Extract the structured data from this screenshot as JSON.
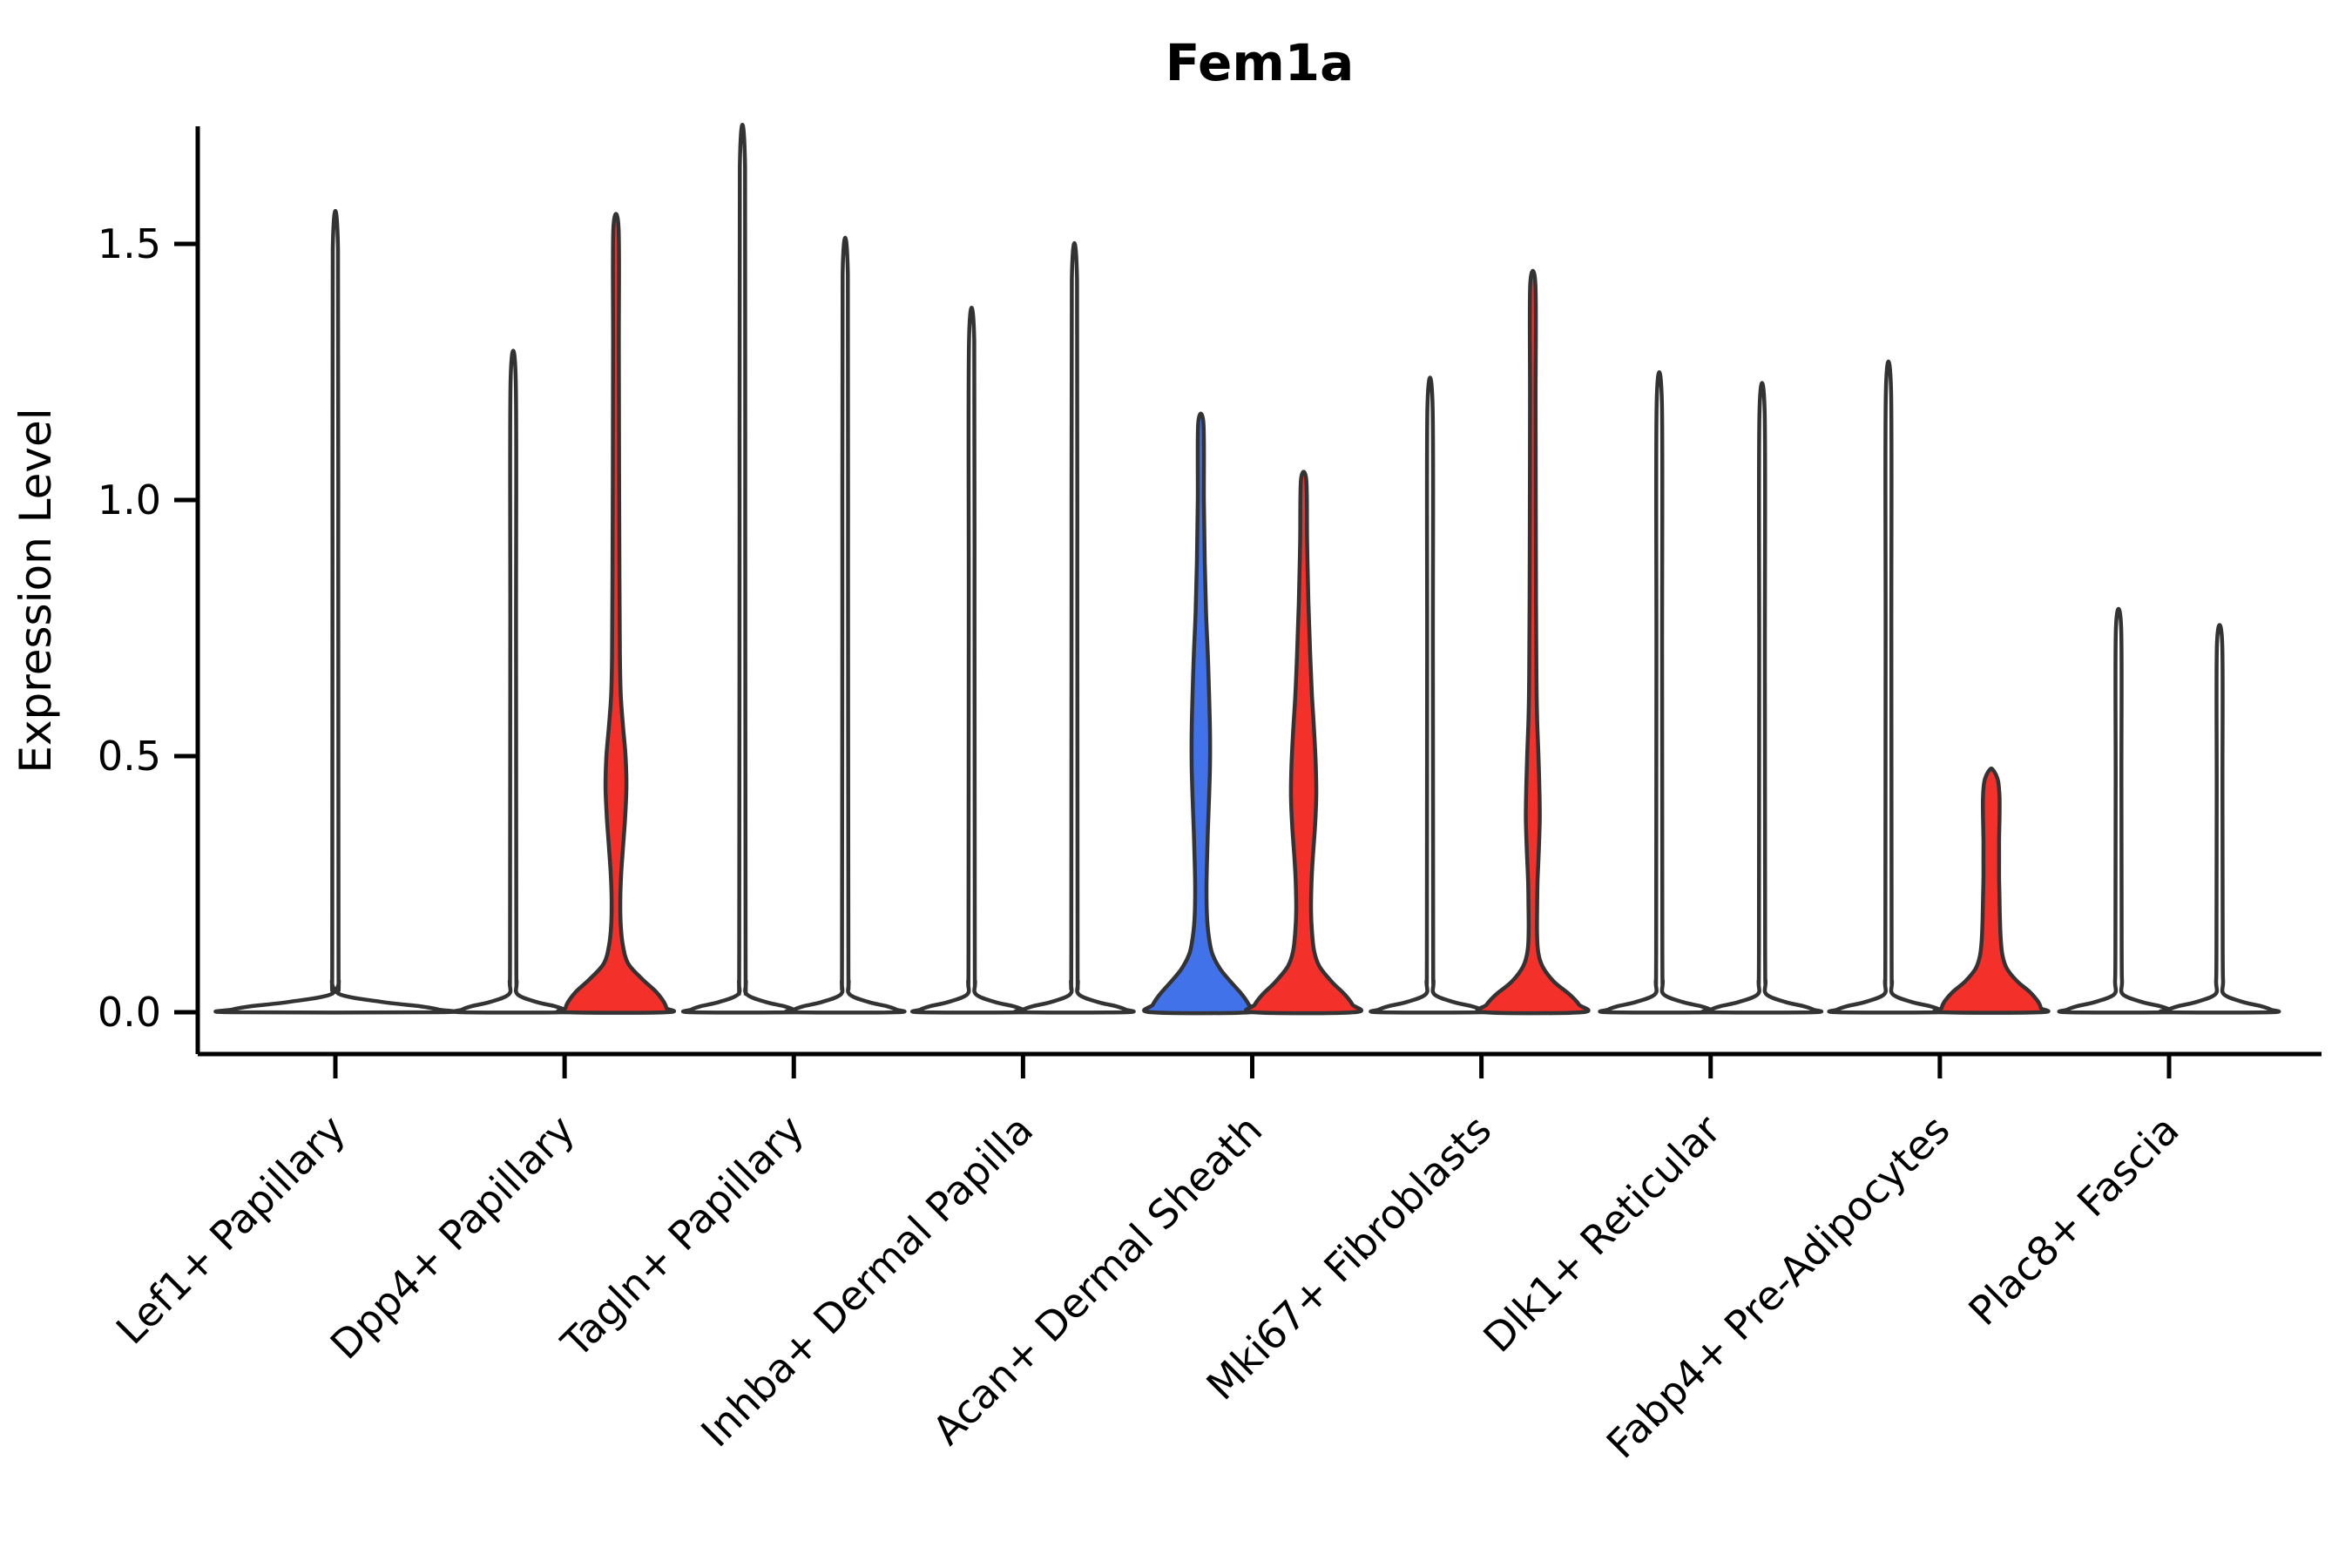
{
  "title": "Fem1a",
  "ylabel": "Expression Level",
  "chart_data": {
    "type": "violin",
    "title": "Fem1a",
    "xlabel": "",
    "ylabel": "Expression Level",
    "ylim": [
      0,
      1.73
    ],
    "yticks": [
      "0.0",
      "0.5",
      "1.0",
      "1.5"
    ],
    "ytick_values": [
      0.0,
      0.5,
      1.0,
      1.5
    ],
    "grid": "off",
    "legend": "none",
    "colors": {
      "red": "#F4302B",
      "blue": "#4272EA",
      "outline": "#333333",
      "axis": "#000000"
    },
    "categories": [
      "Lef1+ Papillary",
      "Dpp4+ Papillary",
      "Tagln+ Papillary",
      "Inhba+ Dermal Papilla",
      "Acan+ Dermal Sheath",
      "Mki67+ Fibroblasts",
      "Dlk1+ Reticular",
      "Fabp4+ Pre-Adipocytes",
      "Plac8+ Fascia"
    ],
    "category_max_expression": [
      {
        "category": "Lef1+ Papillary",
        "violins": [
          1.49
        ]
      },
      {
        "category": "Dpp4+ Papillary",
        "violins": [
          1.23,
          1.53
        ]
      },
      {
        "category": "Tagln+ Papillary",
        "violins": [
          1.65,
          1.44
        ]
      },
      {
        "category": "Inhba+ Dermal Papilla",
        "violins": [
          1.31,
          1.43
        ]
      },
      {
        "category": "Acan+ Dermal Sheath",
        "violins": [
          1.15,
          1.04
        ]
      },
      {
        "category": "Mki67+ Fibroblasts",
        "violins": [
          1.18,
          1.42
        ]
      },
      {
        "category": "Dlk1+ Reticular",
        "violins": [
          1.19,
          1.17
        ]
      },
      {
        "category": "Fabp4+ Pre-Adipocytes",
        "violins": [
          1.21,
          0.48
        ]
      },
      {
        "category": "Plac8+ Fascia",
        "violins": [
          0.75,
          0.72
        ]
      }
    ],
    "violins": [
      {
        "name": "lef1-papillary-single",
        "category_index": 0,
        "offset": 0,
        "fill": "none",
        "max": 1.49,
        "half_max": 119,
        "profile": "spike"
      },
      {
        "name": "dpp4-papillary-left",
        "category_index": 1,
        "offset": -59,
        "fill": "none",
        "max": 1.23,
        "half_max": 59,
        "profile": "spike"
      },
      {
        "name": "dpp4-papillary-right",
        "category_index": 1,
        "offset": 59,
        "fill": "red",
        "max": 1.53,
        "half_max": 59,
        "profile": [
          [
            1.53,
            3
          ],
          [
            1.3,
            3.3
          ],
          [
            1.05,
            3.6
          ],
          [
            0.85,
            4
          ],
          [
            0.7,
            4.5
          ],
          [
            0.62,
            5.5
          ],
          [
            0.56,
            8
          ],
          [
            0.5,
            11
          ],
          [
            0.44,
            12
          ],
          [
            0.38,
            10.5
          ],
          [
            0.32,
            8
          ],
          [
            0.27,
            6
          ],
          [
            0.22,
            5
          ],
          [
            0.17,
            5.5
          ],
          [
            0.13,
            8
          ],
          [
            0.095,
            14
          ],
          [
            0.065,
            30
          ],
          [
            0.04,
            46
          ],
          [
            0.02,
            55
          ],
          [
            0.008,
            58
          ],
          [
            0,
            58
          ]
        ]
      },
      {
        "name": "tagln-papillary-left",
        "category_index": 2,
        "offset": -59,
        "fill": "none",
        "max": 1.65,
        "half_max": 59,
        "profile": "spike"
      },
      {
        "name": "tagln-papillary-right",
        "category_index": 2,
        "offset": 59,
        "fill": "none",
        "max": 1.44,
        "half_max": 59,
        "profile": "spike"
      },
      {
        "name": "inhba-dermal-papilla-left",
        "category_index": 3,
        "offset": -59,
        "fill": "none",
        "max": 1.31,
        "half_max": 59,
        "profile": "spike"
      },
      {
        "name": "inhba-dermal-papilla-right",
        "category_index": 3,
        "offset": 59,
        "fill": "none",
        "max": 1.43,
        "half_max": 59,
        "profile": "spike"
      },
      {
        "name": "acan-dermal-sheath-left",
        "category_index": 4,
        "offset": -59,
        "fill": "blue",
        "max": 1.15,
        "half_max": 59,
        "profile": [
          [
            1.15,
            3
          ],
          [
            1.0,
            3.5
          ],
          [
            0.88,
            4.5
          ],
          [
            0.78,
            6
          ],
          [
            0.7,
            8
          ],
          [
            0.62,
            9.5
          ],
          [
            0.55,
            10.5
          ],
          [
            0.48,
            10.5
          ],
          [
            0.42,
            9.5
          ],
          [
            0.35,
            8
          ],
          [
            0.29,
            7
          ],
          [
            0.24,
            6.5
          ],
          [
            0.19,
            7
          ],
          [
            0.15,
            9
          ],
          [
            0.115,
            13
          ],
          [
            0.085,
            22
          ],
          [
            0.06,
            34
          ],
          [
            0.035,
            47
          ],
          [
            0.015,
            55
          ],
          [
            0,
            57
          ]
        ]
      },
      {
        "name": "acan-dermal-sheath-right",
        "category_index": 4,
        "offset": 59,
        "fill": "red",
        "max": 1.04,
        "half_max": 59,
        "profile": [
          [
            1.04,
            3
          ],
          [
            0.92,
            4
          ],
          [
            0.8,
            5.5
          ],
          [
            0.7,
            7.5
          ],
          [
            0.62,
            9.5
          ],
          [
            0.55,
            12
          ],
          [
            0.48,
            14
          ],
          [
            0.42,
            14.5
          ],
          [
            0.36,
            13
          ],
          [
            0.3,
            10.5
          ],
          [
            0.25,
            9
          ],
          [
            0.2,
            8.5
          ],
          [
            0.16,
            9.5
          ],
          [
            0.12,
            12
          ],
          [
            0.09,
            18
          ],
          [
            0.06,
            32
          ],
          [
            0.035,
            47
          ],
          [
            0.015,
            56
          ],
          [
            0,
            58
          ]
        ]
      },
      {
        "name": "mki67-fibroblasts-left",
        "category_index": 5,
        "offset": -59,
        "fill": "none",
        "max": 1.18,
        "half_max": 59,
        "profile": "spike"
      },
      {
        "name": "mki67-fibroblasts-right",
        "category_index": 5,
        "offset": 59,
        "fill": "red",
        "max": 1.42,
        "half_max": 59,
        "profile": [
          [
            1.42,
            3
          ],
          [
            1.2,
            3.2
          ],
          [
            1.0,
            3.4
          ],
          [
            0.8,
            3.7
          ],
          [
            0.65,
            4.2
          ],
          [
            0.57,
            5
          ],
          [
            0.5,
            6.5
          ],
          [
            0.44,
            7.5
          ],
          [
            0.38,
            8
          ],
          [
            0.32,
            7
          ],
          [
            0.26,
            5.5
          ],
          [
            0.21,
            5
          ],
          [
            0.16,
            4.8
          ],
          [
            0.12,
            6
          ],
          [
            0.09,
            11
          ],
          [
            0.06,
            24
          ],
          [
            0.035,
            42
          ],
          [
            0.015,
            53
          ],
          [
            0,
            56
          ]
        ]
      },
      {
        "name": "dlk1-reticular-left",
        "category_index": 6,
        "offset": -59,
        "fill": "none",
        "max": 1.19,
        "half_max": 59,
        "profile": "spike"
      },
      {
        "name": "dlk1-reticular-right",
        "category_index": 6,
        "offset": 59,
        "fill": "none",
        "max": 1.17,
        "half_max": 59,
        "profile": "spike"
      },
      {
        "name": "fabp4-pre-adipocytes-left",
        "category_index": 7,
        "offset": -59,
        "fill": "none",
        "max": 1.21,
        "half_max": 59,
        "profile": "spike"
      },
      {
        "name": "fabp4-pre-adipocytes-right",
        "category_index": 7,
        "offset": 59,
        "fill": "red",
        "max": 0.48,
        "half_max": 59,
        "profile": [
          [
            0.475,
            1
          ],
          [
            0.465,
            5
          ],
          [
            0.45,
            8
          ],
          [
            0.42,
            9.5
          ],
          [
            0.38,
            9.5
          ],
          [
            0.34,
            9
          ],
          [
            0.3,
            9
          ],
          [
            0.26,
            9
          ],
          [
            0.22,
            9.5
          ],
          [
            0.18,
            10
          ],
          [
            0.14,
            11
          ],
          [
            0.11,
            13
          ],
          [
            0.085,
            18
          ],
          [
            0.06,
            30
          ],
          [
            0.04,
            44
          ],
          [
            0.02,
            54
          ],
          [
            0.008,
            57
          ],
          [
            0,
            57
          ]
        ]
      },
      {
        "name": "plac8-fascia-left",
        "category_index": 8,
        "offset": -58,
        "fill": "none",
        "max": 0.75,
        "half_max": 59,
        "profile": "spike"
      },
      {
        "name": "plac8-fascia-right",
        "category_index": 8,
        "offset": 58,
        "fill": "none",
        "max": 0.72,
        "half_max": 59,
        "profile": "spike"
      }
    ]
  }
}
